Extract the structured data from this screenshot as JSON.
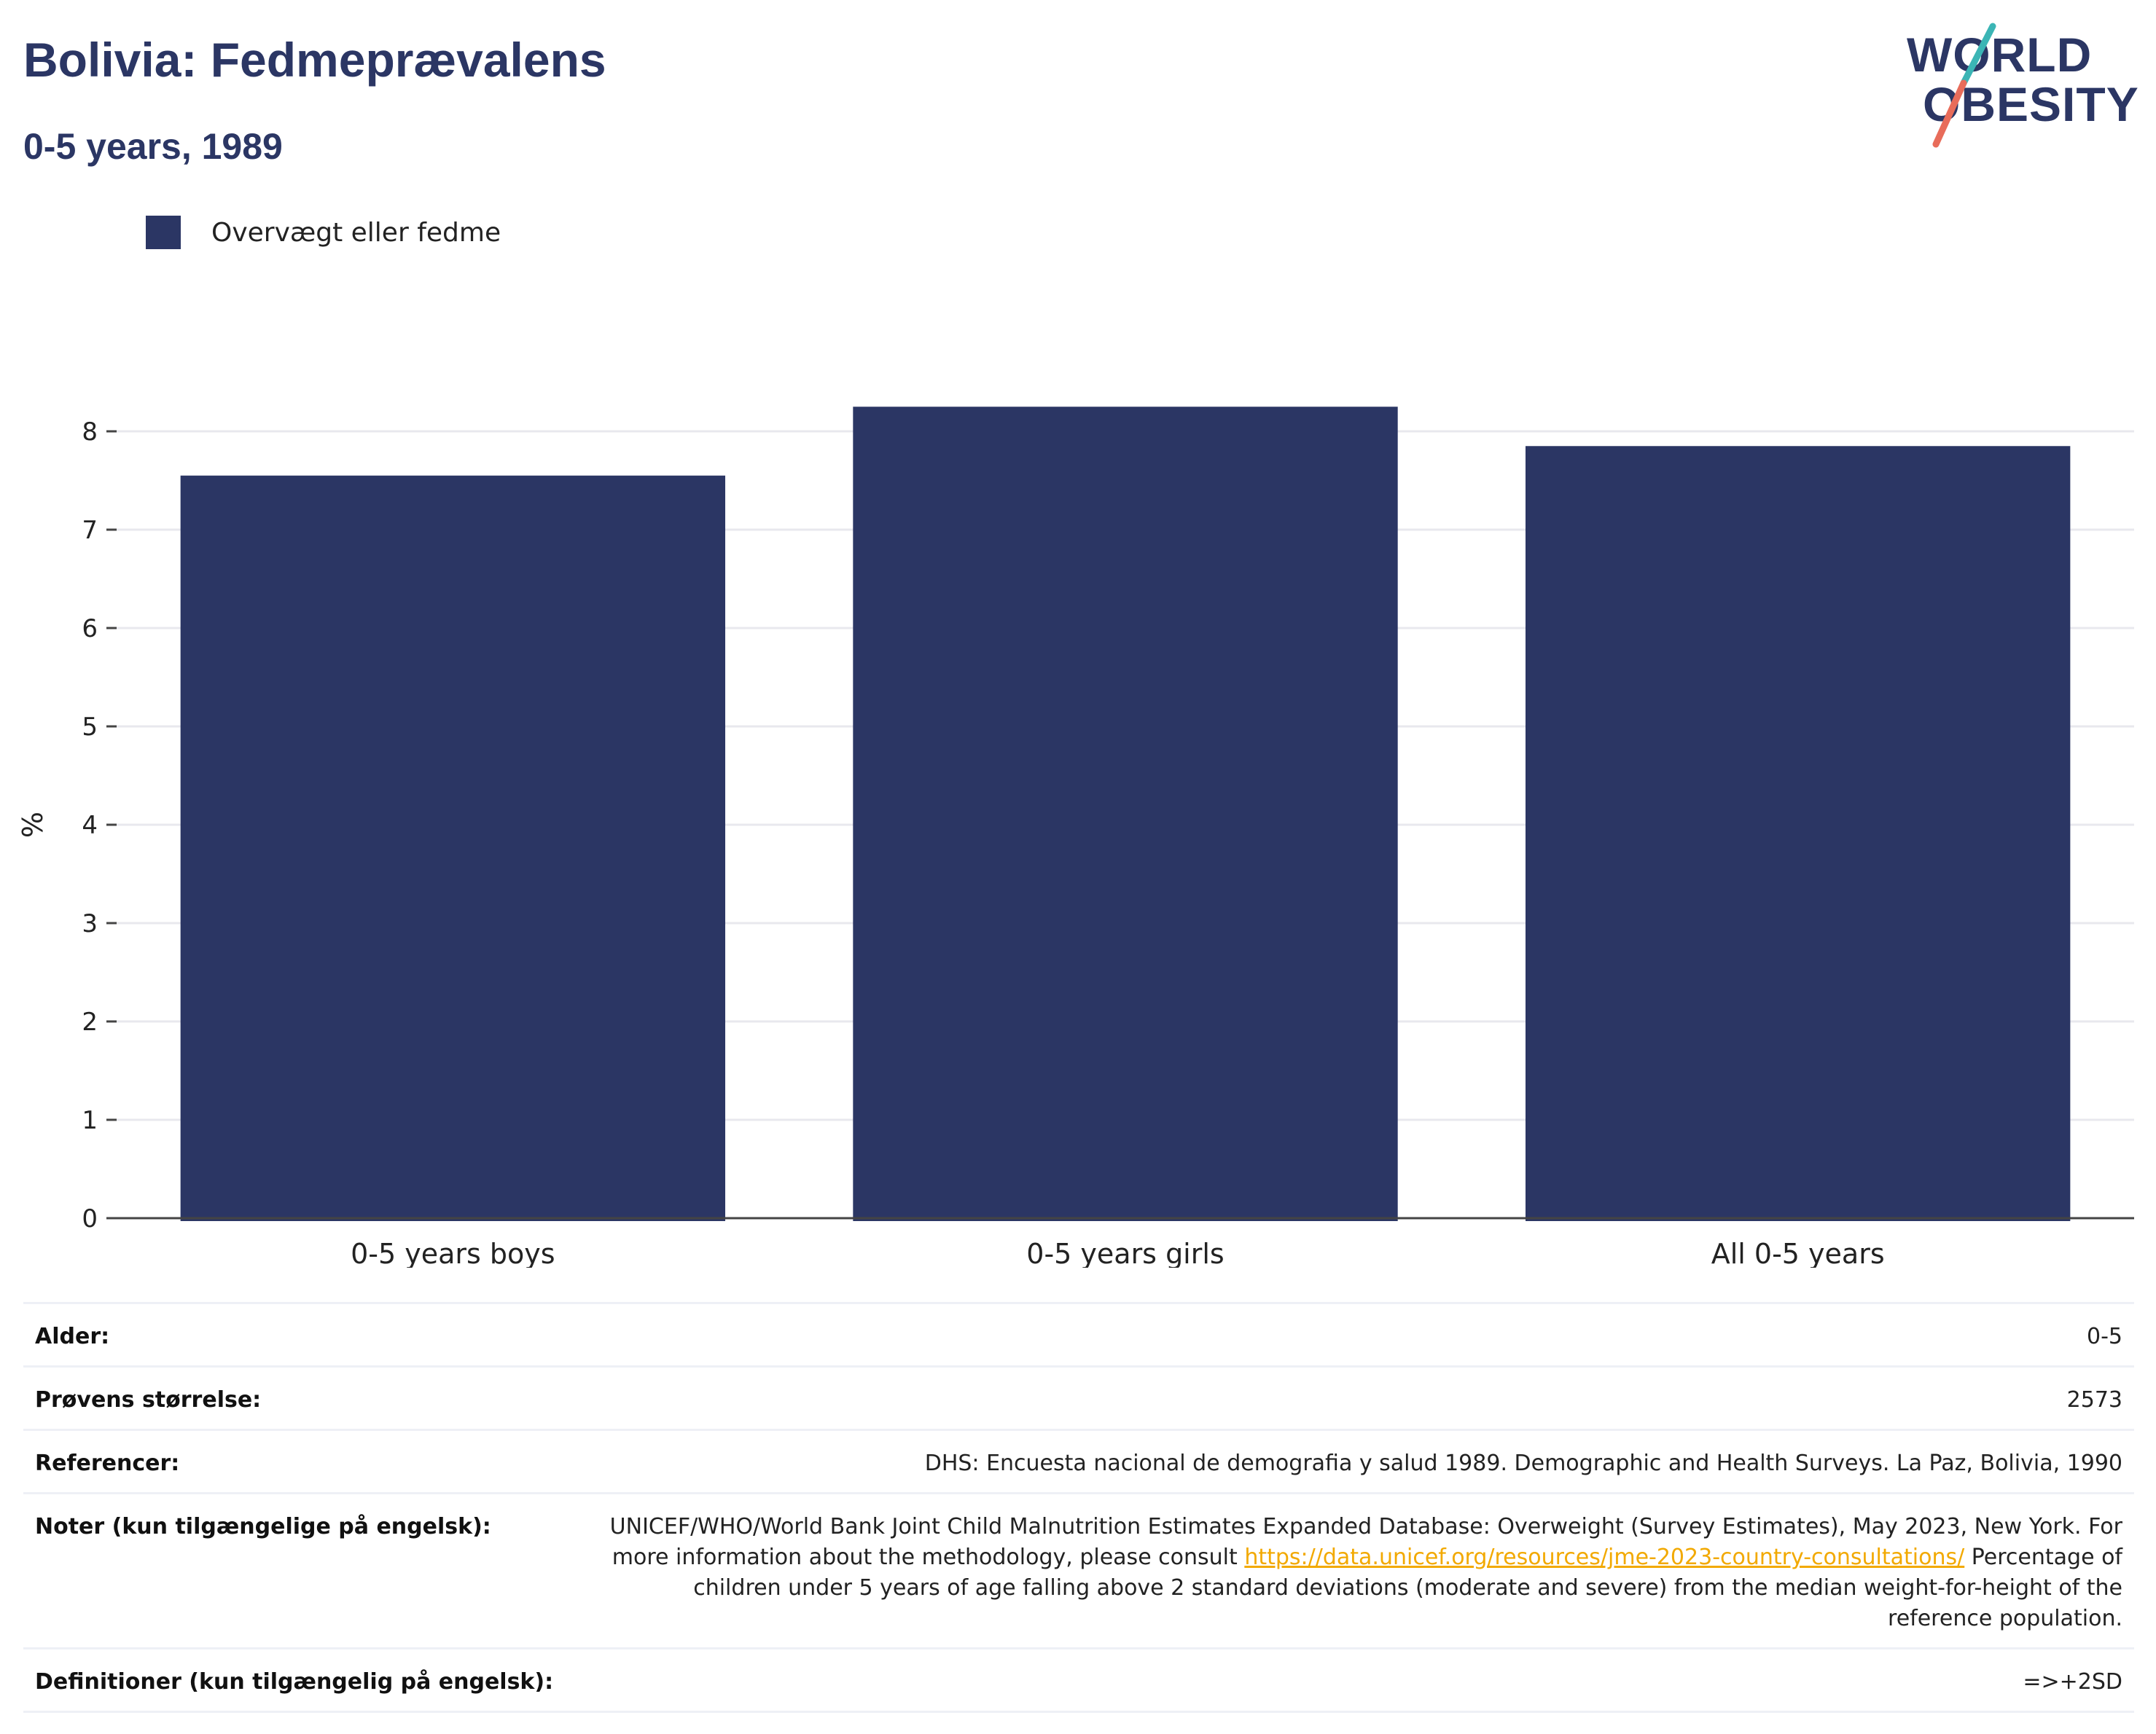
{
  "header": {
    "title": "Bolivia: Fedmeprævalens",
    "subtitle": "0-5 years, 1989"
  },
  "logo": {
    "line1": "WORLD",
    "line2": "OBESITY"
  },
  "colors": {
    "bar": "#2b3664",
    "title": "#2b3664",
    "link": "#f2a900",
    "logo_teal": "#3bb5b5",
    "logo_coral": "#e86c5a"
  },
  "chart_data": {
    "type": "bar",
    "categories": [
      "0-5 years boys",
      "0-5 years girls",
      "All 0-5 years"
    ],
    "series": [
      {
        "name": "Overvægt eller fedme",
        "values": [
          7.55,
          8.25,
          7.85
        ]
      }
    ],
    "ylabel": "%",
    "xlabel": "",
    "ylim": [
      0,
      8.3
    ],
    "yticks": [
      0,
      1,
      2,
      3,
      4,
      5,
      6,
      7,
      8
    ],
    "grid": true,
    "legend": "top-left"
  },
  "info": {
    "age": {
      "label": "Alder:",
      "value": "0-5"
    },
    "sample": {
      "label": "Prøvens størrelse:",
      "value": "2573"
    },
    "references": {
      "label": "Referencer:",
      "value": "DHS: Encuesta nacional de demografia y salud 1989. Demographic and Health Surveys. La Paz, Bolivia, 1990"
    },
    "notes": {
      "label": "Noter (kun tilgængelige på engelsk):",
      "text1": "UNICEF/WHO/World Bank Joint Child Malnutrition Estimates Expanded Database: Overweight (Survey Estimates), May 2023, New York. For more information about the methodology, please consult ",
      "link": "https://data.unicef.org/resources/jme-2023-country-consultations/",
      "text2": "Percentage of children under 5 years of age falling above 2 standard deviations (moderate and severe) from the median weight-for-height of the reference population."
    },
    "definitions": {
      "label": "Definitioner (kun tilgængelig på engelsk):",
      "value": "=>+2SD"
    }
  }
}
